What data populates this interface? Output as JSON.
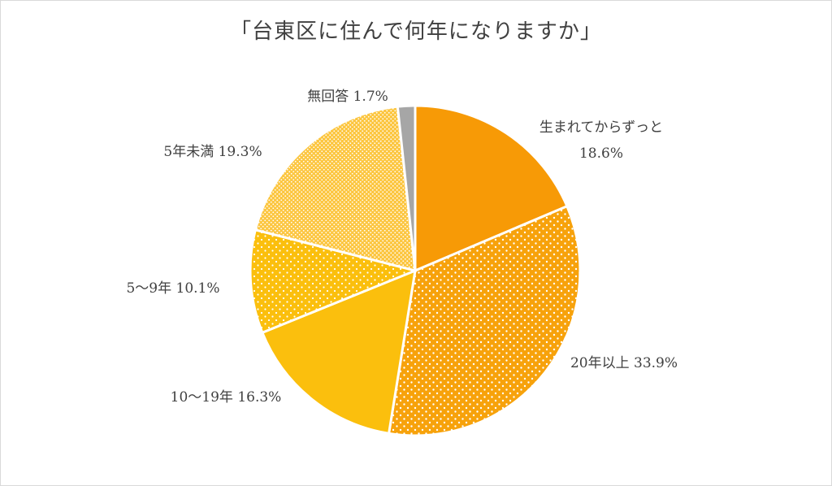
{
  "chart_data": {
    "type": "pie",
    "title": "「台東区に住んで何年になりますか」",
    "slices": [
      {
        "label": "生まれてからずっと",
        "value": 18.6,
        "display": "18.6%",
        "color": "#f79a06",
        "pattern": "none"
      },
      {
        "label": "20年以上",
        "value": 33.9,
        "display": "33.9%",
        "color": "#f7a20b",
        "pattern": "dots"
      },
      {
        "label": "10〜19年",
        "value": 16.3,
        "display": "16.3%",
        "color": "#fbbf0d",
        "pattern": "none"
      },
      {
        "label": "5〜9年",
        "value": 10.1,
        "display": "10.1%",
        "color": "#fbbf0d",
        "pattern": "dots"
      },
      {
        "label": "5年未満",
        "value": 19.3,
        "display": "19.3%",
        "color": "#fcc640",
        "pattern": "fine-dots"
      },
      {
        "label": "無回答",
        "value": 1.7,
        "display": "1.7%",
        "color": "#a6a6a6",
        "pattern": "none"
      }
    ],
    "start_angle": "12 o'clock",
    "direction": "clockwise",
    "legend": "none"
  }
}
